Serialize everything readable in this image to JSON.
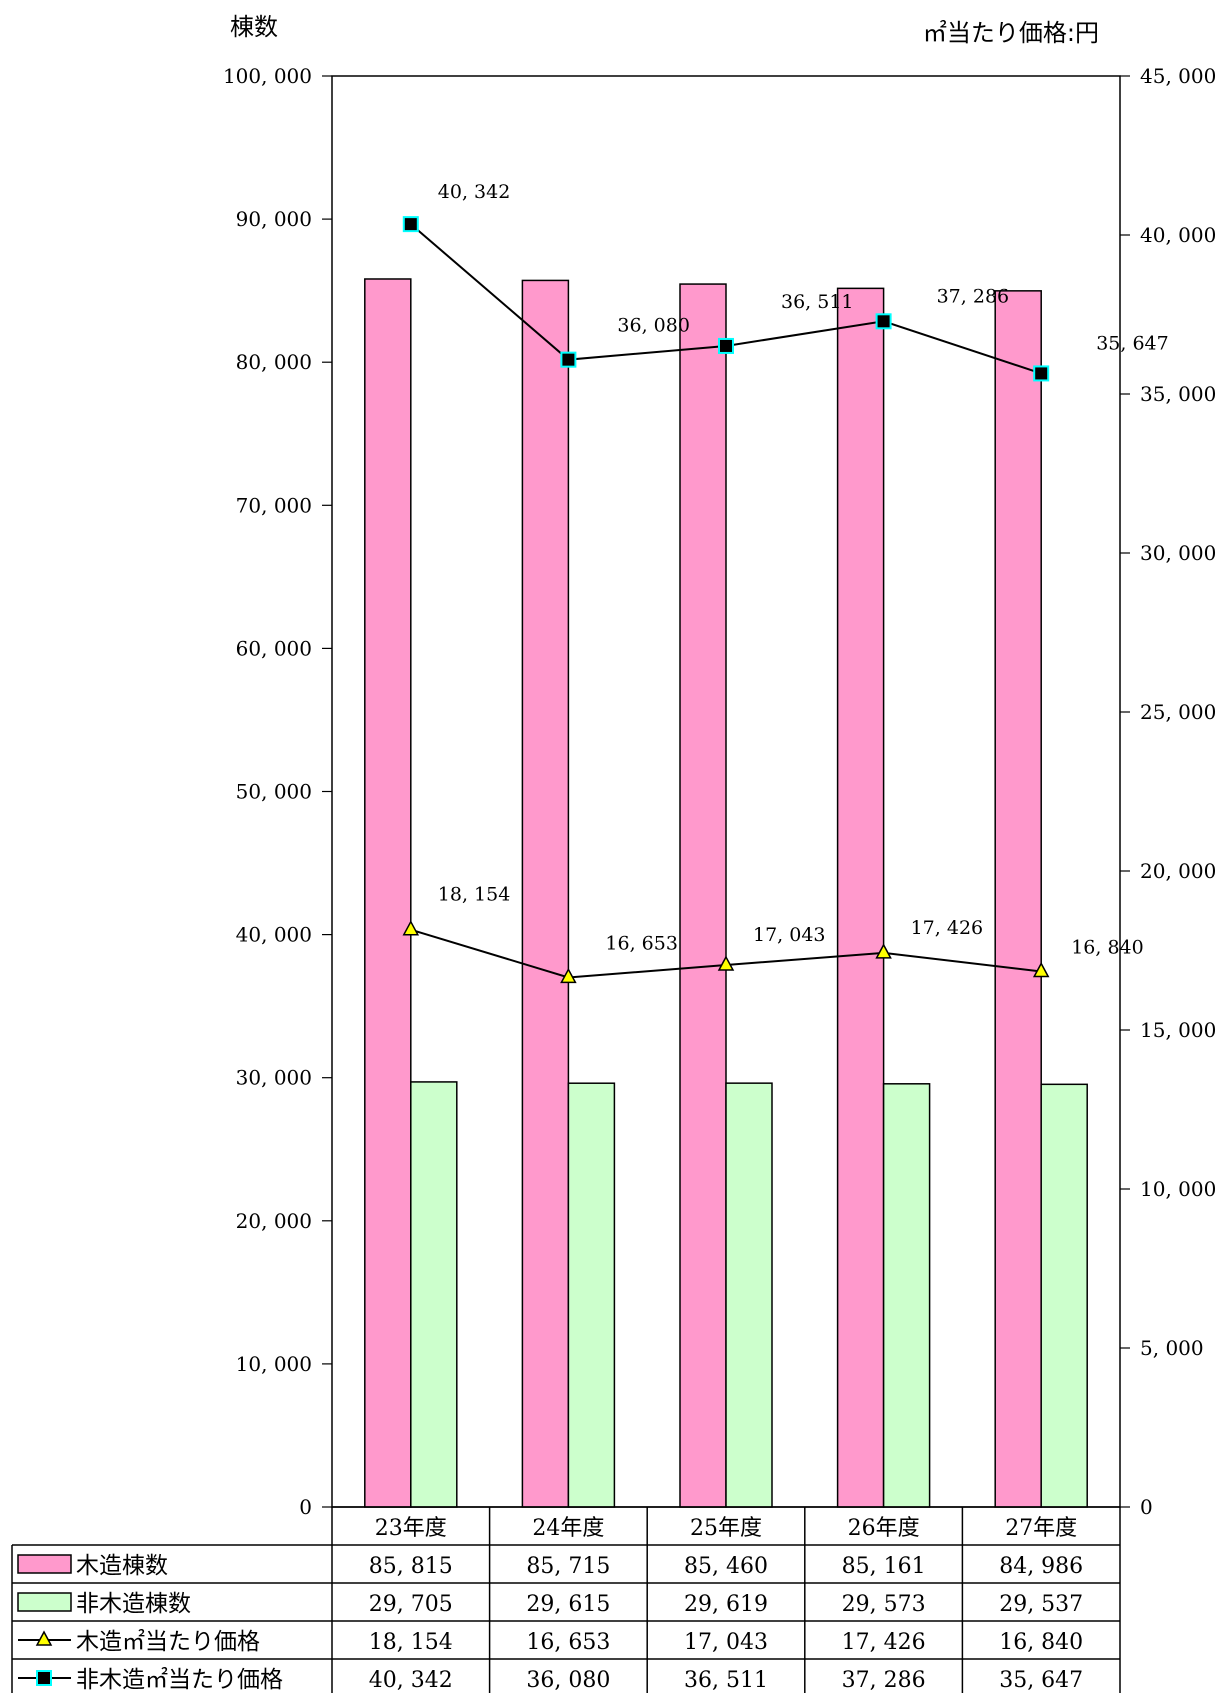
{
  "chart_data": {
    "type": "bar",
    "categories": [
      "23年度",
      "24年度",
      "25年度",
      "26年度",
      "27年度"
    ],
    "series": [
      {
        "name": "木造棟数",
        "kind": "bar",
        "axis": "left",
        "color": "#ff99cc",
        "values": [
          85815,
          85715,
          85460,
          85161,
          84986
        ],
        "display": [
          "85, 815",
          "85, 715",
          "85, 460",
          "85, 161",
          "84, 986"
        ]
      },
      {
        "name": "非木造棟数",
        "kind": "bar",
        "axis": "left",
        "color": "#ccffcc",
        "values": [
          29705,
          29615,
          29619,
          29573,
          29537
        ],
        "display": [
          "29, 705",
          "29, 615",
          "29, 619",
          "29, 573",
          "29, 537"
        ]
      },
      {
        "name": "木造㎡当たり価格",
        "kind": "line",
        "axis": "right",
        "marker": "triangle",
        "marker_color": "#ffff00",
        "values": [
          18154,
          16653,
          17043,
          17426,
          16840
        ],
        "display": [
          "18, 154",
          "16, 653",
          "17, 043",
          "17, 426",
          "16, 840"
        ]
      },
      {
        "name": "非木造㎡当たり価格",
        "kind": "line",
        "axis": "right",
        "marker": "square",
        "marker_color": "#000000",
        "marker_border": "#00ffff",
        "values": [
          40342,
          36080,
          36511,
          37286,
          35647
        ],
        "display": [
          "40, 342",
          "36, 080",
          "36, 511",
          "37, 286",
          "35, 647"
        ]
      }
    ],
    "ylabel": "棟数",
    "y2label": "㎡当たり価格:円",
    "ylim": [
      0,
      100000
    ],
    "y2lim": [
      0,
      45000
    ],
    "yticks": [
      0,
      10000,
      20000,
      30000,
      40000,
      50000,
      60000,
      70000,
      80000,
      90000,
      100000
    ],
    "yticklabels": [
      "0",
      "10, 000",
      "20, 000",
      "30, 000",
      "40, 000",
      "50, 000",
      "60, 000",
      "70, 000",
      "80, 000",
      "90, 000",
      "100, 000"
    ],
    "y2ticks": [
      0,
      5000,
      10000,
      15000,
      20000,
      25000,
      30000,
      35000,
      40000,
      45000
    ],
    "y2ticklabels": [
      "0",
      "5, 000",
      "10, 000",
      "15, 000",
      "20, 000",
      "25, 000",
      "30, 000",
      "35, 000",
      "40, 000",
      "45, 000"
    ],
    "grid": false,
    "legend": "data-table-bottom"
  }
}
